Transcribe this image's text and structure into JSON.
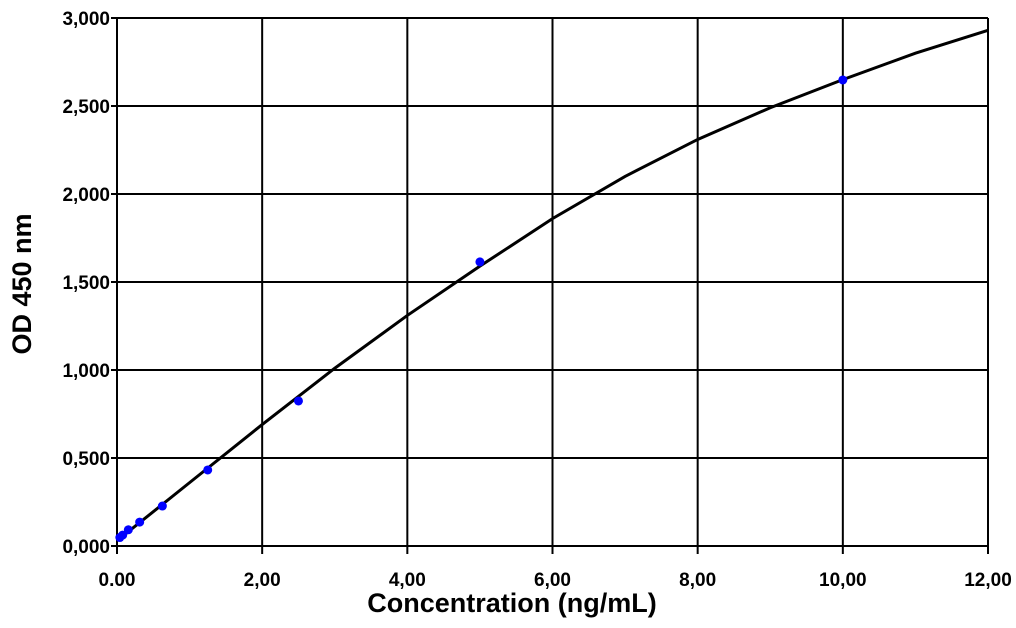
{
  "chart_data": {
    "type": "scatter",
    "x_label": "Concentration (ng/mL)",
    "y_label": "OD 450 nm",
    "xlim": [
      0,
      12
    ],
    "ylim": [
      0,
      3
    ],
    "xticks": [
      {
        "value": 0,
        "label": "0.00"
      },
      {
        "value": 2,
        "label": "2,00"
      },
      {
        "value": 4,
        "label": "4,00"
      },
      {
        "value": 6,
        "label": "6,00"
      },
      {
        "value": 8,
        "label": "8,00"
      },
      {
        "value": 10,
        "label": "10,00"
      },
      {
        "value": 12,
        "label": "12,00"
      }
    ],
    "yticks": [
      {
        "value": 0,
        "label": "0,000"
      },
      {
        "value": 0.5,
        "label": "0,500"
      },
      {
        "value": 1,
        "label": "1,000"
      },
      {
        "value": 1.5,
        "label": "1,500"
      },
      {
        "value": 2,
        "label": "2,000"
      },
      {
        "value": 2.5,
        "label": "2,500"
      },
      {
        "value": 3,
        "label": "3,000"
      }
    ],
    "grid": true,
    "series": [
      {
        "type": "line",
        "color": "#000000",
        "x": [
          0,
          1,
          2,
          3,
          4,
          5,
          6,
          7,
          8,
          9,
          10,
          11,
          12
        ],
        "values": [
          0.03,
          0.36,
          0.69,
          1.01,
          1.31,
          1.59,
          1.86,
          2.1,
          2.31,
          2.49,
          2.65,
          2.8,
          2.93
        ]
      },
      {
        "type": "scatter",
        "color": "#0000ff",
        "x": [
          0.039,
          0.078,
          0.156,
          0.3125,
          0.625,
          1.25,
          2.5,
          5,
          10
        ],
        "values": [
          0.048,
          0.062,
          0.092,
          0.136,
          0.227,
          0.432,
          0.824,
          1.614,
          2.648
        ]
      }
    ]
  }
}
